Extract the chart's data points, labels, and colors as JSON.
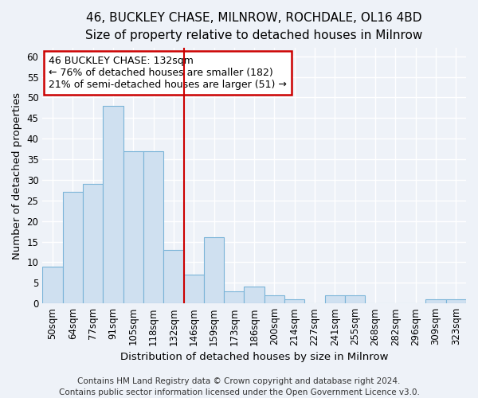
{
  "title_line1": "46, BUCKLEY CHASE, MILNROW, ROCHDALE, OL16 4BD",
  "title_line2": "Size of property relative to detached houses in Milnrow",
  "xlabel": "Distribution of detached houses by size in Milnrow",
  "ylabel": "Number of detached properties",
  "categories": [
    "50sqm",
    "64sqm",
    "77sqm",
    "91sqm",
    "105sqm",
    "118sqm",
    "132sqm",
    "146sqm",
    "159sqm",
    "173sqm",
    "186sqm",
    "200sqm",
    "214sqm",
    "227sqm",
    "241sqm",
    "255sqm",
    "268sqm",
    "282sqm",
    "296sqm",
    "309sqm",
    "323sqm"
  ],
  "values": [
    9,
    27,
    29,
    48,
    37,
    37,
    13,
    7,
    16,
    3,
    4,
    2,
    1,
    0,
    2,
    2,
    0,
    0,
    0,
    1,
    1
  ],
  "bar_color": "#cfe0f0",
  "bar_edge_color": "#7ab4d8",
  "highlight_index": 6,
  "highlight_line_color": "#cc0000",
  "ylim": [
    0,
    62
  ],
  "yticks": [
    0,
    5,
    10,
    15,
    20,
    25,
    30,
    35,
    40,
    45,
    50,
    55,
    60
  ],
  "annotation_line1": "46 BUCKLEY CHASE: 132sqm",
  "annotation_line2": "← 76% of detached houses are smaller (182)",
  "annotation_line3": "21% of semi-detached houses are larger (51) →",
  "annotation_box_color": "#ffffff",
  "annotation_box_edge": "#cc0000",
  "footer_line1": "Contains HM Land Registry data © Crown copyright and database right 2024.",
  "footer_line2": "Contains public sector information licensed under the Open Government Licence v3.0.",
  "bg_color": "#eef2f8",
  "plot_bg_color": "#eef2f8",
  "grid_color": "#ffffff",
  "title_fontsize": 11,
  "subtitle_fontsize": 10,
  "axis_label_fontsize": 9.5,
  "tick_fontsize": 8.5,
  "annotation_fontsize": 9,
  "footer_fontsize": 7.5
}
